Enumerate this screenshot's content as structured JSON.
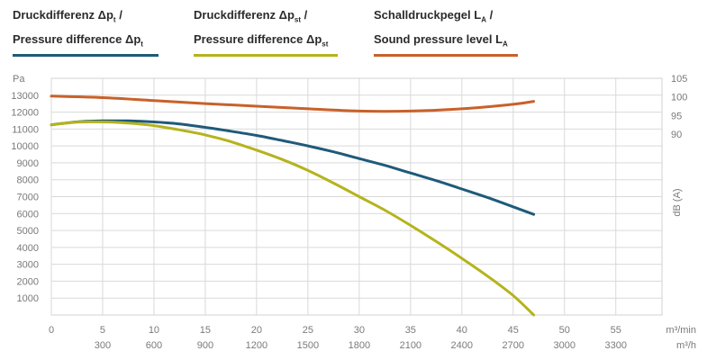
{
  "legend": [
    {
      "line1_main": "Druckdifferenz Δp",
      "line1_sub": "t",
      "line1_tail": " /",
      "line2_main": "Pressure difference Δp",
      "line2_sub": "t",
      "line2_tail": "",
      "color": "#1f5a7a"
    },
    {
      "line1_main": "Druckdifferenz Δp",
      "line1_sub": "st",
      "line1_tail": " /",
      "line2_main": "Pressure difference Δp",
      "line2_sub": "st",
      "line2_tail": "",
      "color": "#b5b31c"
    },
    {
      "line1_main": "Schalldruckpegel L",
      "line1_sub": "A",
      "line1_tail": " /",
      "line2_main": "Sound pressure level L",
      "line2_sub": "A",
      "line2_tail": "",
      "color": "#c8612a"
    }
  ],
  "chart_data": {
    "type": "line",
    "grid": true,
    "y_left": {
      "unit_label": "Pa",
      "ticks": [
        1000,
        2000,
        3000,
        4000,
        5000,
        6000,
        7000,
        8000,
        9000,
        10000,
        11000,
        12000,
        13000
      ],
      "range": [
        0,
        14000
      ]
    },
    "y_right": {
      "label": "dB (A)",
      "ticks": [
        90,
        95,
        100,
        105
      ],
      "range": [
        90,
        105
      ]
    },
    "x_primary": {
      "unit_label": "m³/min",
      "ticks": [
        0,
        5,
        10,
        15,
        20,
        25,
        30,
        35,
        40,
        45,
        50,
        55
      ],
      "range": [
        0,
        59.5
      ]
    },
    "x_secondary": {
      "unit_label": "m³/h",
      "ticks": [
        300,
        600,
        900,
        1200,
        1500,
        1800,
        2100,
        2400,
        2700,
        3000,
        3300
      ]
    },
    "series": [
      {
        "name": "Druckdifferenz Δpt / Pressure difference Δpt",
        "axis": "left",
        "color": "#1f5a7a",
        "x": [
          0,
          2.5,
          5,
          7.5,
          10,
          12.5,
          15,
          17.5,
          20,
          22.5,
          25,
          27.5,
          30,
          32.5,
          35,
          37.5,
          40,
          42.5,
          45,
          47
        ],
        "y": [
          11250,
          11420,
          11480,
          11480,
          11420,
          11300,
          11100,
          10870,
          10620,
          10320,
          10000,
          9650,
          9250,
          8850,
          8400,
          7950,
          7450,
          6950,
          6400,
          5950
        ]
      },
      {
        "name": "Druckdifferenz Δpst / Pressure difference Δpst",
        "axis": "left",
        "color": "#b5b31c",
        "x": [
          0,
          2.5,
          5,
          7.5,
          10,
          12.5,
          15,
          17.5,
          20,
          22.5,
          25,
          27.5,
          30,
          32.5,
          35,
          37.5,
          40,
          42.5,
          45,
          47
        ],
        "y": [
          11250,
          11400,
          11420,
          11350,
          11200,
          10950,
          10650,
          10250,
          9750,
          9200,
          8550,
          7800,
          7000,
          6200,
          5300,
          4350,
          3350,
          2300,
          1150,
          0
        ]
      },
      {
        "name": "Schalldruckpegel LA / Sound pressure level LA",
        "axis": "right",
        "color": "#c8612a",
        "x": [
          0,
          5,
          10,
          15,
          20,
          25,
          30,
          35,
          40,
          45,
          47
        ],
        "y": [
          100.2,
          99.8,
          99.0,
          98.2,
          97.5,
          96.8,
          96.2,
          96.2,
          96.8,
          98.0,
          98.8
        ]
      }
    ]
  }
}
